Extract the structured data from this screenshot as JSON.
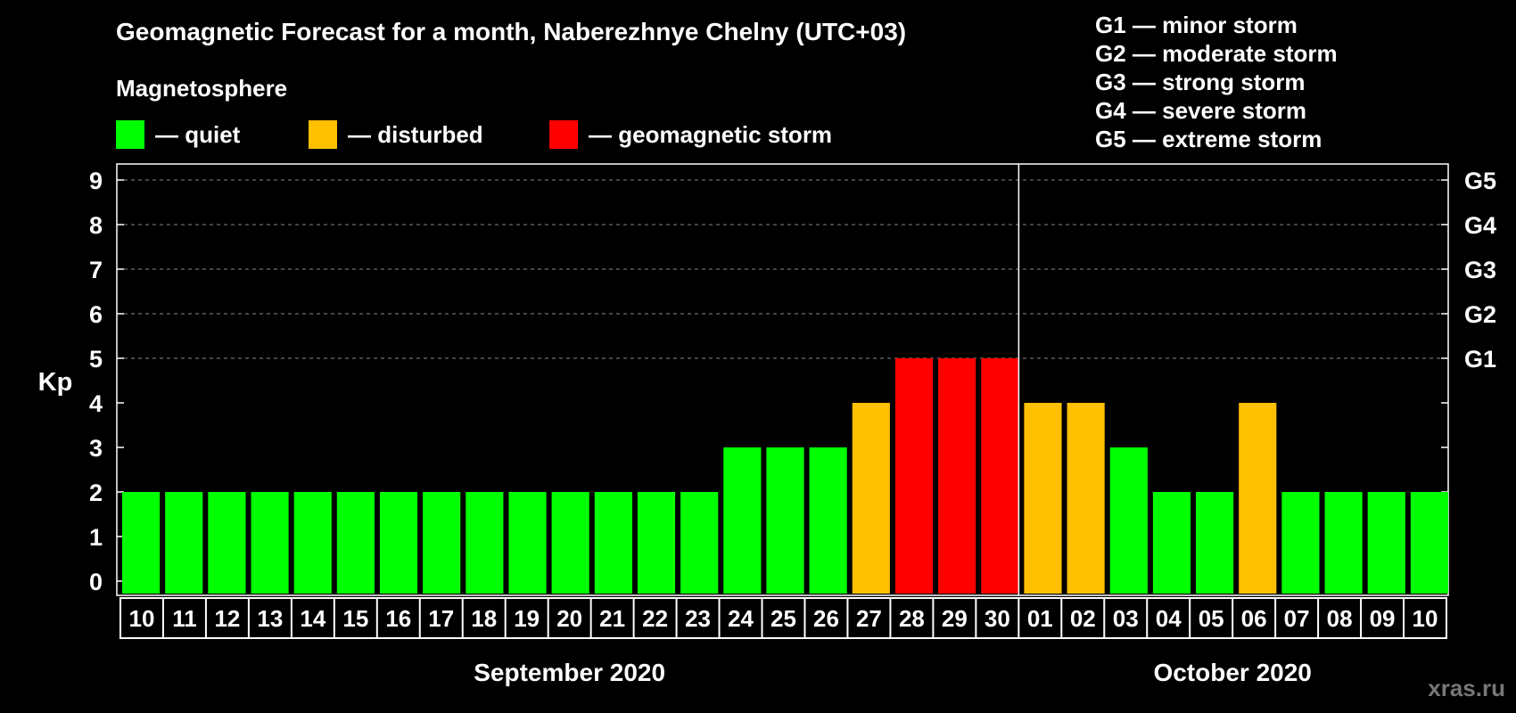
{
  "header": {
    "title": "Geomagnetic Forecast for a month, Naberezhnye Chelny (UTC+03)",
    "subtitle": "Magnetosphere"
  },
  "legend": {
    "items": [
      {
        "label": "— quiet",
        "color": "#00ff00"
      },
      {
        "label": "— disturbed",
        "color": "#ffc000"
      },
      {
        "label": "— geomagnetic storm",
        "color": "#ff0000"
      }
    ]
  },
  "g_scale": {
    "items": [
      "G1 — minor storm",
      "G2 — moderate storm",
      "G3 — strong storm",
      "G4 — severe storm",
      "G5 — extreme storm"
    ]
  },
  "watermark": "xras.ru",
  "chart_data": {
    "type": "bar",
    "title": "Geomagnetic Forecast for a month, Naberezhnye Chelny (UTC+03)",
    "ylabel": "Kp",
    "ylim": [
      0,
      9
    ],
    "y_ticks": [
      "0",
      "1",
      "2",
      "3",
      "4",
      "5",
      "6",
      "7",
      "8",
      "9"
    ],
    "right_ticks": [
      {
        "value": 5,
        "label": "G1"
      },
      {
        "value": 6,
        "label": "G2"
      },
      {
        "value": 7,
        "label": "G3"
      },
      {
        "value": 8,
        "label": "G4"
      },
      {
        "value": 9,
        "label": "G5"
      }
    ],
    "gridlines": [
      5,
      6,
      7,
      8,
      9
    ],
    "categories": [
      "10",
      "11",
      "12",
      "13",
      "14",
      "15",
      "16",
      "17",
      "18",
      "19",
      "20",
      "21",
      "22",
      "23",
      "24",
      "25",
      "26",
      "27",
      "28",
      "29",
      "30",
      "01",
      "02",
      "03",
      "04",
      "05",
      "06",
      "07",
      "08",
      "09",
      "10"
    ],
    "values": [
      2,
      2,
      2,
      2,
      2,
      2,
      2,
      2,
      2,
      2,
      2,
      2,
      2,
      2,
      3,
      3,
      3,
      4,
      5,
      5,
      5,
      4,
      4,
      3,
      2,
      2,
      4,
      2,
      2,
      2,
      2
    ],
    "level": [
      "quiet",
      "quiet",
      "quiet",
      "quiet",
      "quiet",
      "quiet",
      "quiet",
      "quiet",
      "quiet",
      "quiet",
      "quiet",
      "quiet",
      "quiet",
      "quiet",
      "quiet",
      "quiet",
      "quiet",
      "disturbed",
      "storm",
      "storm",
      "storm",
      "disturbed",
      "disturbed",
      "quiet",
      "quiet",
      "quiet",
      "disturbed",
      "quiet",
      "quiet",
      "quiet",
      "quiet"
    ],
    "level_colors": {
      "quiet": "#00ff00",
      "disturbed": "#ffc000",
      "storm": "#ff0000"
    },
    "month_split_after_index": 20,
    "months": [
      {
        "label": "September 2020",
        "start": 0,
        "end": 20
      },
      {
        "label": "October 2020",
        "start": 21,
        "end": 30
      }
    ]
  }
}
